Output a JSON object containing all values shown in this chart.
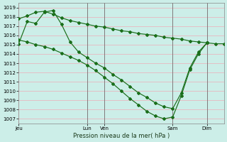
{
  "title": "Pression niveau de la mer( hPa )",
  "bg_color": "#cceee8",
  "grid_color": "#e8b8c0",
  "line_color": "#1a6e1a",
  "ylim": [
    1006.5,
    1019.5
  ],
  "yticks": [
    1007,
    1008,
    1009,
    1010,
    1011,
    1012,
    1013,
    1014,
    1015,
    1016,
    1017,
    1018,
    1019
  ],
  "xlim": [
    0,
    24
  ],
  "xtick_positions": [
    0,
    8,
    10,
    18,
    22
  ],
  "xtick_labels": [
    "Jeu",
    "Lun",
    "Ven",
    "Sam",
    "Dim"
  ],
  "vline_positions": [
    8,
    10,
    18,
    22
  ],
  "line_high_x": [
    0,
    1,
    2,
    3,
    4,
    5,
    6,
    7,
    8,
    9,
    10,
    11,
    12,
    13,
    14,
    15,
    16,
    17,
    18,
    19,
    20,
    21,
    22,
    23,
    24
  ],
  "line_high_y": [
    1017.8,
    1018.1,
    1018.5,
    1018.6,
    1018.3,
    1017.9,
    1017.6,
    1017.4,
    1017.2,
    1017.0,
    1016.9,
    1016.7,
    1016.5,
    1016.4,
    1016.2,
    1016.1,
    1016.0,
    1015.8,
    1015.7,
    1015.6,
    1015.4,
    1015.3,
    1015.2,
    1015.1,
    1015.1
  ],
  "line_mid_x": [
    0,
    1,
    2,
    3,
    4,
    5,
    6,
    7,
    8,
    9,
    10,
    11,
    12,
    13,
    14,
    15,
    16,
    17,
    18,
    19,
    20,
    21,
    22
  ],
  "line_mid_y": [
    1015.1,
    1017.5,
    1017.3,
    1018.5,
    1018.7,
    1017.2,
    1015.3,
    1014.2,
    1013.6,
    1013.0,
    1012.5,
    1011.8,
    1011.2,
    1010.5,
    1009.8,
    1009.3,
    1008.7,
    1008.3,
    1008.1,
    1009.8,
    1012.5,
    1014.2,
    1015.2
  ],
  "line_low_x": [
    0,
    1,
    2,
    3,
    4,
    5,
    6,
    7,
    8,
    9,
    10,
    11,
    12,
    13,
    14,
    15,
    16,
    17,
    18,
    19,
    20,
    21,
    22
  ],
  "line_low_y": [
    1015.5,
    1015.3,
    1015.0,
    1014.8,
    1014.5,
    1014.1,
    1013.7,
    1013.3,
    1012.8,
    1012.2,
    1011.5,
    1010.8,
    1010.0,
    1009.2,
    1008.5,
    1007.8,
    1007.3,
    1007.0,
    1007.2,
    1009.5,
    1012.3,
    1014.0,
    1015.2
  ]
}
